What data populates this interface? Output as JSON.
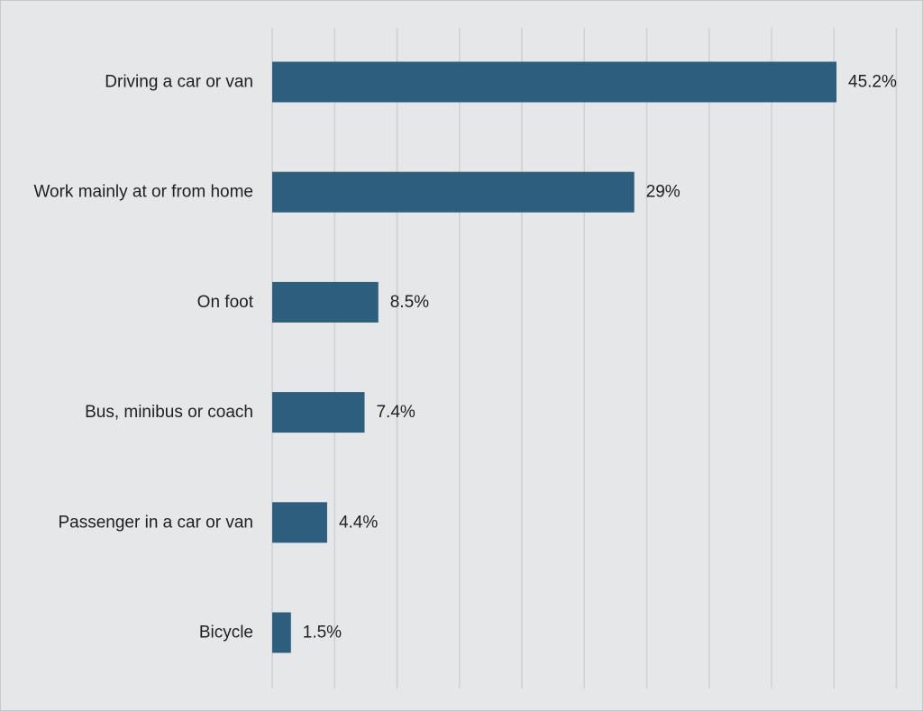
{
  "chart_data": {
    "type": "bar",
    "orientation": "horizontal",
    "categories": [
      "Driving a car or van",
      "Work mainly at or from home",
      "On foot",
      "Bus, minibus or coach",
      "Passenger in a car or van",
      "Bicycle"
    ],
    "values": [
      45.2,
      29,
      8.5,
      7.4,
      4.4,
      1.5
    ],
    "value_labels": [
      "45.2%",
      "29%",
      "8.5%",
      "7.4%",
      "4.4%",
      "1.5%"
    ],
    "title": "",
    "xlabel": "",
    "ylabel": "",
    "xlim": [
      0,
      50
    ],
    "grid_step": 5,
    "grid": true,
    "bar_color": "#2e5e7e",
    "background_color": "#e6e7e9",
    "gridline_color": "#cfd0d2"
  }
}
